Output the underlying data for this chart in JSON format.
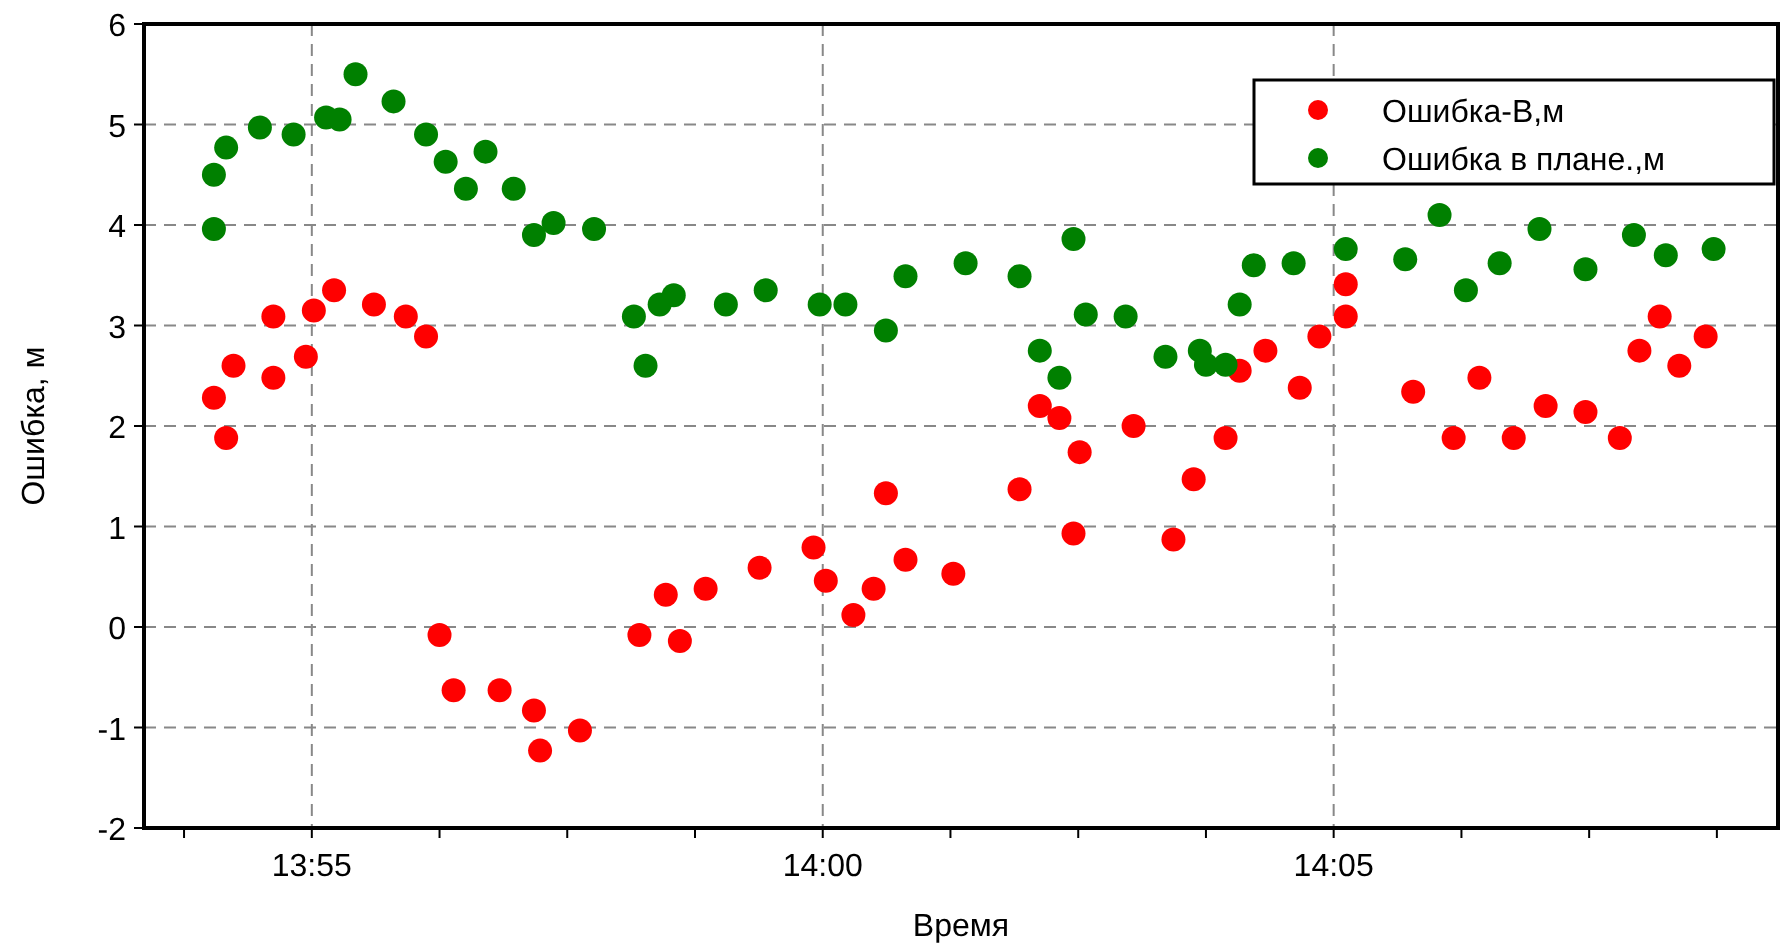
{
  "chart_data": {
    "type": "scatter",
    "xlabel": "Время",
    "ylabel": "Ошибка, м",
    "xlim": [
      13.8893,
      14.1558
    ],
    "ylim": [
      -2,
      6
    ],
    "yticks": [
      -2,
      -1,
      0,
      1,
      2,
      3,
      4,
      5,
      6
    ],
    "xticks": [
      {
        "value": 13.89583,
        "label": null
      },
      {
        "value": 13.91667,
        "label": "13:55"
      },
      {
        "value": 13.9375,
        "label": null
      },
      {
        "value": 13.95833,
        "label": null
      },
      {
        "value": 13.97917,
        "label": null
      },
      {
        "value": 14.0,
        "label": "14:00"
      },
      {
        "value": 14.02083,
        "label": null
      },
      {
        "value": 14.04167,
        "label": null
      },
      {
        "value": 14.0625,
        "label": null
      },
      {
        "value": 14.08333,
        "label": "14:05"
      },
      {
        "value": 14.10417,
        "label": null
      },
      {
        "value": 14.125,
        "label": null
      },
      {
        "value": 14.14583,
        "label": null
      }
    ],
    "grid": true,
    "legend": "top right",
    "marker": "circle",
    "series": [
      {
        "name": "Ошибка-В,м",
        "color": "#ff0000",
        "x": [
          13.9007,
          13.9027,
          13.9039,
          13.9104,
          13.9104,
          13.9157,
          13.917,
          13.9203,
          13.9268,
          13.932,
          13.9353,
          13.9375,
          13.9398,
          13.9473,
          13.9529,
          13.9539,
          13.9604,
          13.9701,
          13.9744,
          13.9767,
          13.9809,
          13.9897,
          13.9985,
          14.0005,
          14.005,
          14.0083,
          14.0103,
          14.0135,
          14.0213,
          14.0321,
          14.0354,
          14.0386,
          14.0409,
          14.0419,
          14.0507,
          14.0572,
          14.0605,
          14.0657,
          14.068,
          14.0722,
          14.0778,
          14.081,
          14.0853,
          14.0853,
          14.0963,
          14.1029,
          14.1071,
          14.1127,
          14.1179,
          14.1244,
          14.13,
          14.1332,
          14.1365,
          14.1397,
          14.144
        ],
        "values": [
          2.28,
          1.88,
          2.6,
          2.48,
          3.09,
          2.69,
          3.15,
          3.35,
          3.21,
          3.09,
          2.89,
          -0.08,
          -0.63,
          -0.63,
          -0.83,
          -1.23,
          -1.03,
          -0.08,
          0.32,
          -0.14,
          0.38,
          0.59,
          0.79,
          0.46,
          0.12,
          0.38,
          1.33,
          0.67,
          0.53,
          1.37,
          2.2,
          2.08,
          0.93,
          1.74,
          2.0,
          0.87,
          1.47,
          1.88,
          2.55,
          2.75,
          2.38,
          2.89,
          3.09,
          3.41,
          2.34,
          1.88,
          2.48,
          1.88,
          2.2,
          2.14,
          1.88,
          2.75,
          3.09,
          2.6,
          2.89
        ]
      },
      {
        "name": "Ошибка в плане.,м",
        "color": "#008000",
        "x": [
          13.9007,
          13.9007,
          13.9027,
          13.9082,
          13.9137,
          13.919,
          13.9212,
          13.9238,
          13.93,
          13.9353,
          13.9385,
          13.9418,
          13.945,
          13.9496,
          13.9529,
          13.9561,
          13.9627,
          13.9692,
          13.9711,
          13.9757,
          13.9734,
          13.9842,
          13.9907,
          13.9995,
          14.0037,
          14.0103,
          14.0135,
          14.0233,
          14.0321,
          14.0409,
          14.0354,
          14.0386,
          14.0429,
          14.0494,
          14.0559,
          14.0625,
          14.0615,
          14.0657,
          14.068,
          14.0703,
          14.0768,
          14.0853,
          14.095,
          14.1006,
          14.1049,
          14.1104,
          14.1169,
          14.1244,
          14.1323,
          14.1375,
          14.1453
        ],
        "values": [
          3.96,
          4.5,
          4.77,
          4.97,
          4.9,
          5.07,
          5.05,
          5.5,
          5.23,
          4.9,
          4.63,
          4.36,
          4.73,
          4.36,
          3.9,
          4.02,
          3.96,
          3.09,
          2.6,
          3.3,
          3.21,
          3.21,
          3.35,
          3.21,
          3.21,
          2.95,
          3.49,
          3.62,
          3.49,
          3.86,
          2.75,
          2.48,
          3.11,
          3.09,
          2.69,
          2.61,
          2.75,
          2.61,
          3.21,
          3.6,
          3.62,
          3.76,
          3.66,
          4.1,
          3.35,
          3.62,
          3.96,
          3.56,
          3.9,
          3.7,
          3.76
        ]
      }
    ]
  }
}
